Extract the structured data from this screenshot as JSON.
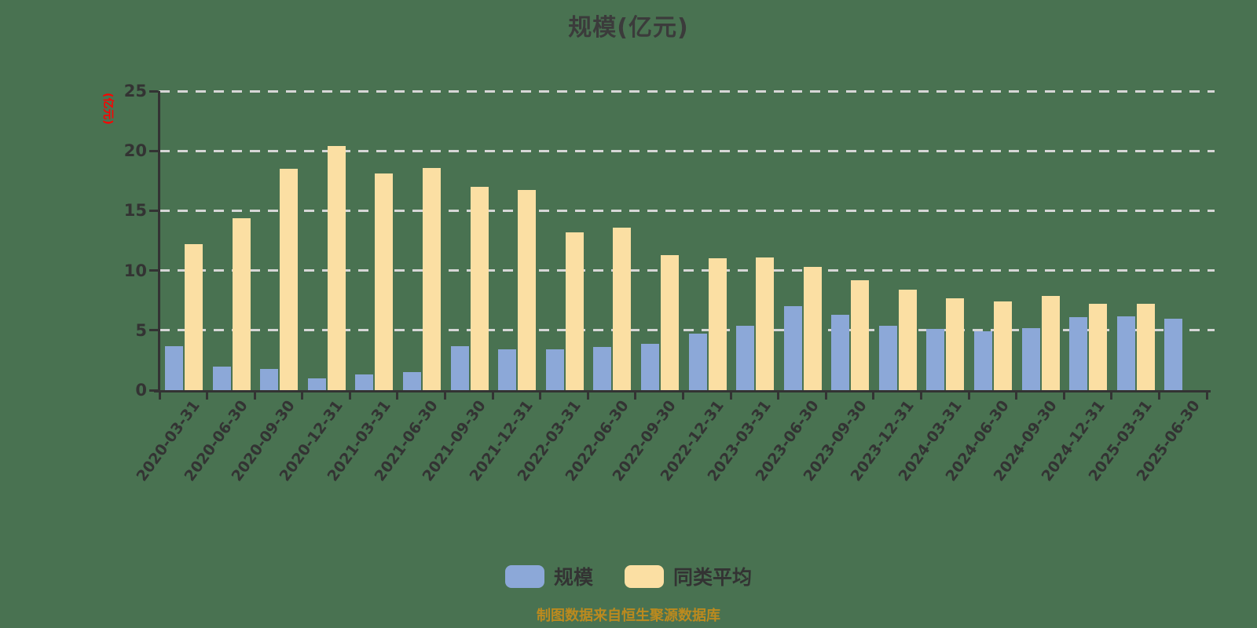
{
  "title": "规模(亿元)",
  "caption": "制图数据来自恒生聚源数据库",
  "y_axis": {
    "name": "(亿元)",
    "name_color": "#ff0000",
    "tick_labels": [
      "0",
      "5",
      "10",
      "15",
      "20",
      "25"
    ]
  },
  "colors": {
    "background": "#497251",
    "axis": "#333333",
    "grid": "#d6d6d6",
    "text": "#333333",
    "title": "#3b3b3b",
    "caption": "#bc8a1e",
    "series_scale": "#8CA8D8",
    "series_average": "#FBDFA3"
  },
  "chart_data": {
    "type": "bar",
    "title": "规模(亿元)",
    "ylabel": "(亿元)",
    "xlabel": "",
    "ylim": [
      0,
      25
    ],
    "ytick_step": 5,
    "grid": "horizontal-dashed",
    "legend_position": "bottom",
    "categories": [
      "2020-03-31",
      "2020-06-30",
      "2020-09-30",
      "2020-12-31",
      "2021-03-31",
      "2021-06-30",
      "2021-09-30",
      "2021-12-31",
      "2022-03-31",
      "2022-06-30",
      "2022-09-30",
      "2022-12-31",
      "2023-03-31",
      "2023-06-30",
      "2023-09-30",
      "2023-12-31",
      "2024-03-31",
      "2024-06-30",
      "2024-09-30",
      "2024-12-31",
      "2025-03-31",
      "2025-06-30"
    ],
    "series": [
      {
        "name": "规模",
        "color": "#8CA8D8",
        "values": [
          3.7,
          2.0,
          1.8,
          1.0,
          1.3,
          1.5,
          3.7,
          3.4,
          3.4,
          3.6,
          3.9,
          4.7,
          5.4,
          7.0,
          6.3,
          5.4,
          5.1,
          4.9,
          5.2,
          6.1,
          6.2,
          6.0
        ]
      },
      {
        "name": "同类平均",
        "color": "#FBDFA3",
        "values": [
          12.2,
          14.4,
          18.5,
          20.4,
          18.1,
          18.6,
          17.0,
          16.7,
          13.2,
          13.6,
          11.3,
          11.0,
          11.1,
          10.3,
          9.2,
          8.4,
          7.7,
          7.4,
          7.9,
          7.2,
          7.2,
          null
        ]
      }
    ]
  }
}
